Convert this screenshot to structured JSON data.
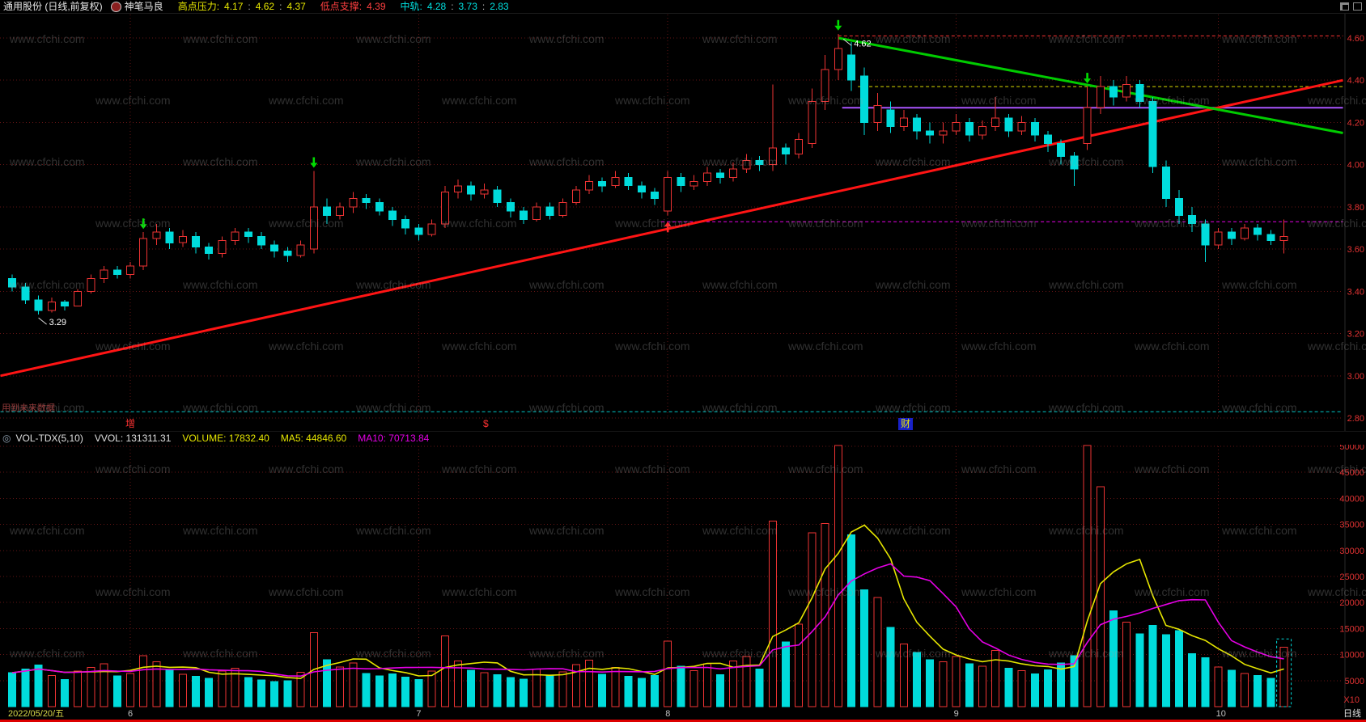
{
  "window": {
    "title": "通用股份 (日线,前复权)",
    "badge": "神笔马良"
  },
  "header": {
    "pressure": {
      "label": "高点压力:",
      "values": [
        "4.17",
        "4.62",
        "4.37"
      ]
    },
    "support": {
      "label": "低点支撑:",
      "value": "4.39"
    },
    "mid": {
      "label": "中轨:",
      "values": [
        "4.28",
        "3.73",
        "2.83"
      ]
    }
  },
  "volume_header": {
    "indicator": "VOL-TDX(5,10)",
    "vvol_label": "VVOL:",
    "vvol": "131311.31",
    "volume_label": "VOLUME:",
    "volume": "17832.40",
    "ma5_label": "MA5:",
    "ma5": "44846.60",
    "ma10_label": "MA10:",
    "ma10": "70713.84"
  },
  "main_chart": {
    "note": "用到未来数据"
  },
  "markers": [
    {
      "text": "增",
      "x": 155,
      "color": "#ff3232"
    },
    {
      "text": "$",
      "x": 597,
      "color": "#ff3232"
    },
    {
      "text": "财",
      "x": 1110,
      "color": "#e8e800",
      "bg": "#1821c8"
    }
  ],
  "bottom": {
    "date": "2022/05/20/五",
    "period": "日线",
    "unit": "X10"
  },
  "watermark": {
    "text": "www.cfchi.com"
  },
  "colors": {
    "up": "#ee3333",
    "down": "#00dcdc",
    "grid": "#641414",
    "axis_text": "#e13232",
    "ma5": "#e6e600",
    "ma10": "#e600e6",
    "arrow_down": "#00dc00",
    "arrow_up": "#ff2828"
  },
  "chart_data": {
    "type": "candlestick+volume",
    "title": "通用股份 日线",
    "price_axis": {
      "ticks": [
        4.6,
        4.4,
        4.2,
        4.0,
        3.8,
        3.6,
        3.4,
        3.2,
        3.0,
        2.8
      ],
      "ylim": [
        2.8,
        4.7
      ]
    },
    "volume_axis": {
      "ticks": [
        50000,
        45000,
        40000,
        35000,
        30000,
        25000,
        20000,
        15000,
        10000,
        5000
      ],
      "unit": "X10"
    },
    "month_marks": [
      {
        "label": "6",
        "index": 9
      },
      {
        "label": "7",
        "index": 31
      },
      {
        "label": "8",
        "index": 50
      },
      {
        "label": "9",
        "index": 72
      },
      {
        "label": "10",
        "index": 92
      }
    ],
    "candles": [
      [
        3.46,
        3.48,
        3.4,
        3.42,
        6500
      ],
      [
        3.42,
        3.44,
        3.34,
        3.36,
        7200
      ],
      [
        3.36,
        3.38,
        3.29,
        3.31,
        8000
      ],
      [
        3.31,
        3.37,
        3.3,
        3.35,
        6000
      ],
      [
        3.35,
        3.36,
        3.31,
        3.33,
        5200
      ],
      [
        3.33,
        3.41,
        3.33,
        3.4,
        6800
      ],
      [
        3.4,
        3.48,
        3.39,
        3.46,
        7500
      ],
      [
        3.46,
        3.52,
        3.44,
        3.5,
        8200
      ],
      [
        3.5,
        3.52,
        3.46,
        3.48,
        5900
      ],
      [
        3.48,
        3.54,
        3.46,
        3.52,
        6400
      ],
      [
        3.52,
        3.68,
        3.5,
        3.65,
        9800
      ],
      [
        3.65,
        3.72,
        3.62,
        3.68,
        8600
      ],
      [
        3.68,
        3.7,
        3.6,
        3.63,
        7000
      ],
      [
        3.63,
        3.69,
        3.61,
        3.66,
        6200
      ],
      [
        3.66,
        3.68,
        3.58,
        3.61,
        5800
      ],
      [
        3.61,
        3.63,
        3.55,
        3.58,
        5400
      ],
      [
        3.58,
        3.66,
        3.56,
        3.64,
        6800
      ],
      [
        3.64,
        3.7,
        3.62,
        3.68,
        7400
      ],
      [
        3.68,
        3.7,
        3.63,
        3.66,
        5600
      ],
      [
        3.66,
        3.68,
        3.6,
        3.62,
        5100
      ],
      [
        3.62,
        3.64,
        3.56,
        3.59,
        4800
      ],
      [
        3.59,
        3.61,
        3.54,
        3.57,
        5000
      ],
      [
        3.57,
        3.64,
        3.56,
        3.62,
        6600
      ],
      [
        3.6,
        3.97,
        3.58,
        3.8,
        14200
      ],
      [
        3.8,
        3.84,
        3.72,
        3.76,
        9000
      ],
      [
        3.76,
        3.82,
        3.74,
        3.8,
        7600
      ],
      [
        3.8,
        3.87,
        3.77,
        3.84,
        8400
      ],
      [
        3.84,
        3.86,
        3.79,
        3.82,
        6400
      ],
      [
        3.82,
        3.84,
        3.76,
        3.78,
        5900
      ],
      [
        3.78,
        3.8,
        3.71,
        3.74,
        6300
      ],
      [
        3.74,
        3.76,
        3.67,
        3.7,
        5700
      ],
      [
        3.7,
        3.72,
        3.64,
        3.67,
        5200
      ],
      [
        3.67,
        3.74,
        3.66,
        3.72,
        6800
      ],
      [
        3.72,
        3.9,
        3.7,
        3.87,
        13600
      ],
      [
        3.87,
        3.93,
        3.84,
        3.9,
        8800
      ],
      [
        3.9,
        3.92,
        3.83,
        3.86,
        7000
      ],
      [
        3.86,
        3.91,
        3.84,
        3.88,
        6500
      ],
      [
        3.88,
        3.9,
        3.8,
        3.82,
        6100
      ],
      [
        3.82,
        3.84,
        3.75,
        3.78,
        5600
      ],
      [
        3.78,
        3.8,
        3.72,
        3.74,
        5300
      ],
      [
        3.74,
        3.82,
        3.73,
        3.8,
        7200
      ],
      [
        3.8,
        3.82,
        3.74,
        3.76,
        5900
      ],
      [
        3.76,
        3.84,
        3.75,
        3.82,
        6700
      ],
      [
        3.82,
        3.9,
        3.81,
        3.88,
        8100
      ],
      [
        3.88,
        3.95,
        3.86,
        3.92,
        8900
      ],
      [
        3.92,
        3.94,
        3.87,
        3.9,
        6200
      ],
      [
        3.9,
        3.97,
        3.89,
        3.94,
        7500
      ],
      [
        3.94,
        3.96,
        3.88,
        3.9,
        5800
      ],
      [
        3.9,
        3.92,
        3.84,
        3.87,
        5400
      ],
      [
        3.87,
        3.89,
        3.81,
        3.84,
        6000
      ],
      [
        3.78,
        3.97,
        3.76,
        3.94,
        12600
      ],
      [
        3.94,
        3.96,
        3.87,
        3.9,
        7800
      ],
      [
        3.9,
        3.95,
        3.88,
        3.92,
        6900
      ],
      [
        3.92,
        3.99,
        3.9,
        3.96,
        8200
      ],
      [
        3.96,
        3.98,
        3.91,
        3.94,
        6100
      ],
      [
        3.94,
        4.01,
        3.92,
        3.98,
        8800
      ],
      [
        3.98,
        4.05,
        3.96,
        4.02,
        9600
      ],
      [
        4.02,
        4.04,
        3.97,
        4.0,
        7200
      ],
      [
        4.0,
        4.38,
        3.97,
        4.08,
        35600
      ],
      [
        4.08,
        4.1,
        4.0,
        4.05,
        12400
      ],
      [
        4.05,
        4.15,
        4.03,
        4.12,
        15800
      ],
      [
        4.1,
        4.36,
        4.08,
        4.3,
        33400
      ],
      [
        4.3,
        4.52,
        4.26,
        4.45,
        35200
      ],
      [
        4.45,
        4.62,
        4.4,
        4.55,
        50300
      ],
      [
        4.52,
        4.58,
        4.35,
        4.4,
        33000
      ],
      [
        4.42,
        4.46,
        4.14,
        4.2,
        22400
      ],
      [
        4.2,
        4.34,
        4.16,
        4.28,
        21000
      ],
      [
        4.26,
        4.3,
        4.15,
        4.18,
        15200
      ],
      [
        4.18,
        4.26,
        4.16,
        4.22,
        12000
      ],
      [
        4.22,
        4.24,
        4.12,
        4.16,
        10400
      ],
      [
        4.16,
        4.2,
        4.1,
        4.14,
        9000
      ],
      [
        4.14,
        4.2,
        4.1,
        4.16,
        8600
      ],
      [
        4.16,
        4.24,
        4.14,
        4.2,
        9600
      ],
      [
        4.2,
        4.22,
        4.11,
        4.14,
        8200
      ],
      [
        4.14,
        4.21,
        4.12,
        4.18,
        7800
      ],
      [
        4.18,
        4.32,
        4.16,
        4.22,
        10800
      ],
      [
        4.22,
        4.24,
        4.13,
        4.16,
        7400
      ],
      [
        4.16,
        4.23,
        4.14,
        4.2,
        6900
      ],
      [
        4.2,
        4.22,
        4.11,
        4.14,
        6300
      ],
      [
        4.14,
        4.16,
        4.06,
        4.1,
        7100
      ],
      [
        4.1,
        4.12,
        4.0,
        4.04,
        8400
      ],
      [
        4.04,
        4.06,
        3.9,
        3.98,
        9800
      ],
      [
        4.1,
        4.37,
        4.07,
        4.27,
        50600
      ],
      [
        4.27,
        4.42,
        4.24,
        4.37,
        42200
      ],
      [
        4.37,
        4.4,
        4.28,
        4.32,
        18400
      ],
      [
        4.32,
        4.42,
        4.3,
        4.38,
        16200
      ],
      [
        4.38,
        4.4,
        4.27,
        4.3,
        14000
      ],
      [
        4.3,
        4.32,
        3.96,
        3.99,
        15600
      ],
      [
        3.99,
        4.02,
        3.8,
        3.84,
        13800
      ],
      [
        3.84,
        3.88,
        3.72,
        3.76,
        14600
      ],
      [
        3.76,
        3.8,
        3.68,
        3.72,
        10200
      ],
      [
        3.72,
        3.74,
        3.54,
        3.62,
        9400
      ],
      [
        3.62,
        3.7,
        3.6,
        3.68,
        7600
      ],
      [
        3.68,
        3.7,
        3.62,
        3.65,
        7000
      ],
      [
        3.65,
        3.72,
        3.64,
        3.7,
        6400
      ],
      [
        3.7,
        3.72,
        3.64,
        3.67,
        6000
      ],
      [
        3.67,
        3.69,
        3.62,
        3.64,
        5400
      ],
      [
        3.64,
        3.74,
        3.58,
        3.66,
        11400
      ]
    ],
    "signals": {
      "green_down_arrows": [
        10,
        23,
        63,
        82
      ],
      "red_up_arrows": [
        50
      ]
    },
    "levels": [
      {
        "price": 4.61,
        "from": 63,
        "to": 101.5,
        "color": "#ff3232",
        "dash": true,
        "width": 1
      },
      {
        "price": 4.37,
        "from": 64.5,
        "to": 101.5,
        "color": "#dcdc00",
        "dash": true,
        "width": 1
      },
      {
        "price": 4.27,
        "from": 63.3,
        "to": 101.5,
        "color": "#aa55ff",
        "dash": false,
        "width": 2
      },
      {
        "price": 3.73,
        "from": 49.5,
        "to": 101.5,
        "color": "#e600e6",
        "dash": true,
        "width": 1
      },
      {
        "price": 2.83,
        "from": -0.9,
        "to": 101.5,
        "color": "#00c8c8",
        "dash": true,
        "width": 1
      }
    ],
    "trendlines": [
      {
        "from": {
          "index": -0.9,
          "price": 3.0
        },
        "to": {
          "index": 101.5,
          "price": 4.4
        },
        "color": "#ff1414",
        "width": 3
      },
      {
        "from": {
          "index": 63,
          "price": 4.6
        },
        "to": {
          "index": 101.5,
          "price": 4.15
        },
        "color": "#00cc00",
        "width": 3
      }
    ],
    "annotations": [
      {
        "text": "4.62",
        "index": 64.2,
        "price": 4.56,
        "color": "#ffffff",
        "leader": true
      },
      {
        "text": "3.29",
        "index": 2.8,
        "price": 3.24,
        "color": "#ffffff",
        "leader": true
      }
    ],
    "last_bar_box": {
      "vol": 13000
    }
  }
}
